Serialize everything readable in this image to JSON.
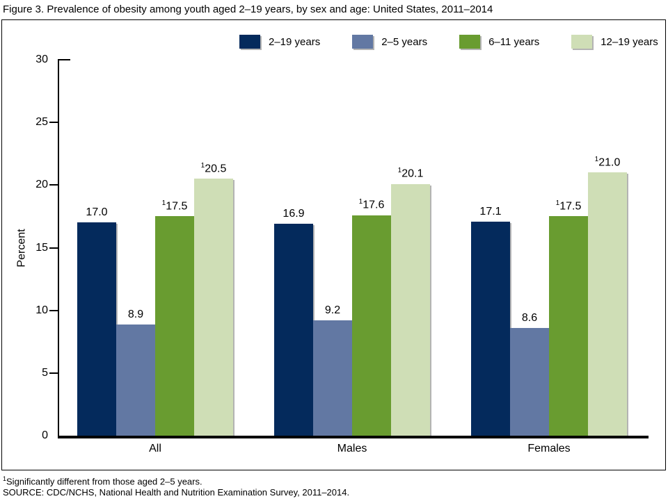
{
  "title": "Figure 3. Prevalence of obesity among youth aged 2–19 years, by sex and age: United States, 2011–2014",
  "chart_data": {
    "type": "bar",
    "title": "Prevalence of obesity among youth aged 2–19 years, by sex and age: United States, 2011–2014",
    "xlabel": "",
    "ylabel": "Percent",
    "ylim": [
      0,
      30
    ],
    "yticks": [
      0,
      5,
      10,
      15,
      20,
      25,
      30
    ],
    "grid": false,
    "legend_position": "top",
    "categories": [
      "All",
      "Males",
      "Females"
    ],
    "series": [
      {
        "name": "2–19 years",
        "color": "#042a5c",
        "values": [
          17.0,
          16.9,
          17.1
        ],
        "labels": [
          "17.0",
          "16.9",
          "17.1"
        ],
        "flagged": [
          false,
          false,
          false
        ]
      },
      {
        "name": "2–5 years",
        "color": "#6278a3",
        "values": [
          8.9,
          9.2,
          8.6
        ],
        "labels": [
          "8.9",
          "9.2",
          "8.6"
        ],
        "flagged": [
          false,
          false,
          false
        ]
      },
      {
        "name": "6–11 years",
        "color": "#699c30",
        "values": [
          17.5,
          17.6,
          17.5
        ],
        "labels": [
          "17.5",
          "17.6",
          "17.5"
        ],
        "flagged": [
          true,
          true,
          true
        ]
      },
      {
        "name": "12–19 years",
        "color": "#cfdeb6",
        "values": [
          20.5,
          20.1,
          21.0
        ],
        "labels": [
          "20.5",
          "20.1",
          "21.0"
        ],
        "flagged": [
          true,
          true,
          true
        ]
      }
    ],
    "flag_superscript": "1",
    "shadow_color": "#b3b3b3"
  },
  "footnotes": {
    "note1_sup": "1",
    "note1_text": "Significantly different from those aged 2–5 years.",
    "source": "SOURCE: CDC/NCHS, National Health and Nutrition Examination Survey, 2011–2014."
  }
}
